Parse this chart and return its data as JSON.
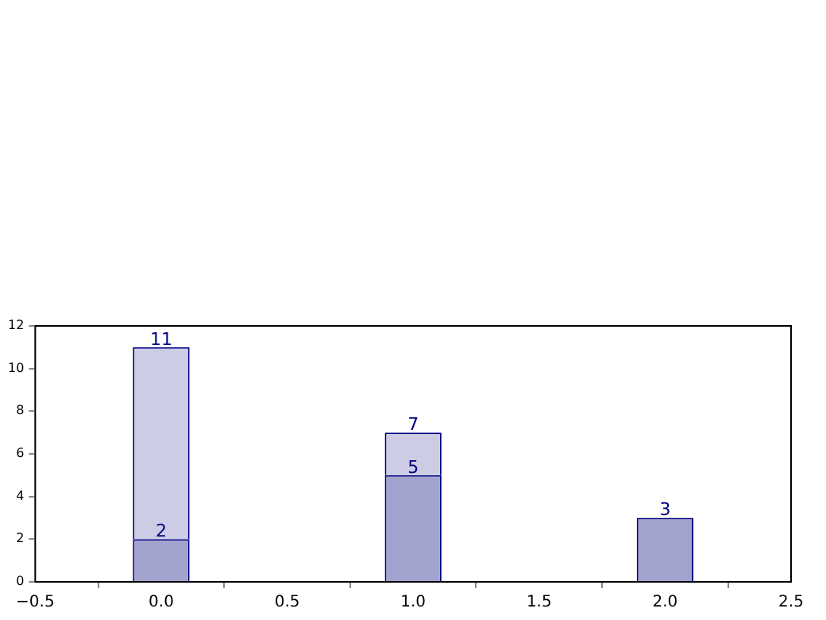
{
  "chart_data": {
    "type": "bar",
    "x": [
      0,
      1,
      2
    ],
    "stacked": true,
    "series": [
      {
        "color": "#a3a3cf",
        "values": [
          2,
          5,
          3
        ],
        "value_labels": [
          "2",
          "5",
          null
        ]
      },
      {
        "color": "#cccce5",
        "values": [
          9,
          2,
          null
        ]
      }
    ],
    "totals": [
      "11",
      "7",
      "3"
    ],
    "xlim": [
      -0.5,
      2.5
    ],
    "xticks": [
      {
        "value": -0.5,
        "label": "−0.5"
      },
      {
        "value": 0,
        "label": "0.0"
      },
      {
        "value": 0.5,
        "label": "0.5"
      },
      {
        "value": 1,
        "label": "1.0"
      },
      {
        "value": 1.5,
        "label": "1.5"
      },
      {
        "value": 2,
        "label": "2.0"
      },
      {
        "value": 2.5,
        "label": "2.5"
      }
    ],
    "ylim": [
      0,
      12
    ],
    "yticks": [
      0,
      2,
      4,
      6,
      8,
      10,
      12
    ],
    "grid": false,
    "legend": false
  }
}
